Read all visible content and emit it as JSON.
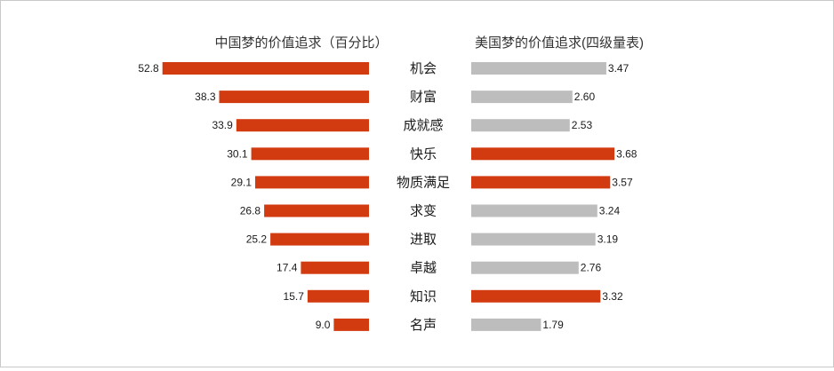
{
  "chart_data": [
    {
      "type": "bar",
      "orientation": "horizontal",
      "title": "中国梦的价值追求（百分比）",
      "categories": [
        "机会",
        "财富",
        "成就感",
        "快乐",
        "物质满足",
        "求变",
        "进取",
        "卓越",
        "知识",
        "名声"
      ],
      "values": [
        52.8,
        38.3,
        33.9,
        30.1,
        29.1,
        26.8,
        25.2,
        17.4,
        15.7,
        9.0
      ],
      "value_labels": [
        "52.8",
        "38.3",
        "33.9",
        "30.1",
        "29.1",
        "26.8",
        "25.2",
        "17.4",
        "15.7",
        "9.0"
      ],
      "xlim": [
        0,
        60
      ],
      "direction": "right-to-left",
      "grid": false,
      "colors": [
        "#d23a10"
      ]
    },
    {
      "type": "bar",
      "orientation": "horizontal",
      "title": "美国梦的价值追求(四级量表)",
      "categories": [
        "机会",
        "财富",
        "成就感",
        "快乐",
        "物质满足",
        "求变",
        "进取",
        "卓越",
        "知识",
        "名声"
      ],
      "values": [
        3.47,
        2.6,
        2.53,
        3.68,
        3.57,
        3.24,
        3.19,
        2.76,
        3.32,
        1.79
      ],
      "value_labels": [
        "3.47",
        "2.60",
        "2.53",
        "3.68",
        "3.57",
        "3.24",
        "3.19",
        "2.76",
        "3.32",
        "1.79"
      ],
      "xlim": [
        0,
        4.34
      ],
      "direction": "left-to-right",
      "grid": false,
      "highlighted": [
        "快乐",
        "物质满足",
        "知识"
      ],
      "colors": [
        "#bdbdbd",
        "#d23a10"
      ]
    }
  ]
}
